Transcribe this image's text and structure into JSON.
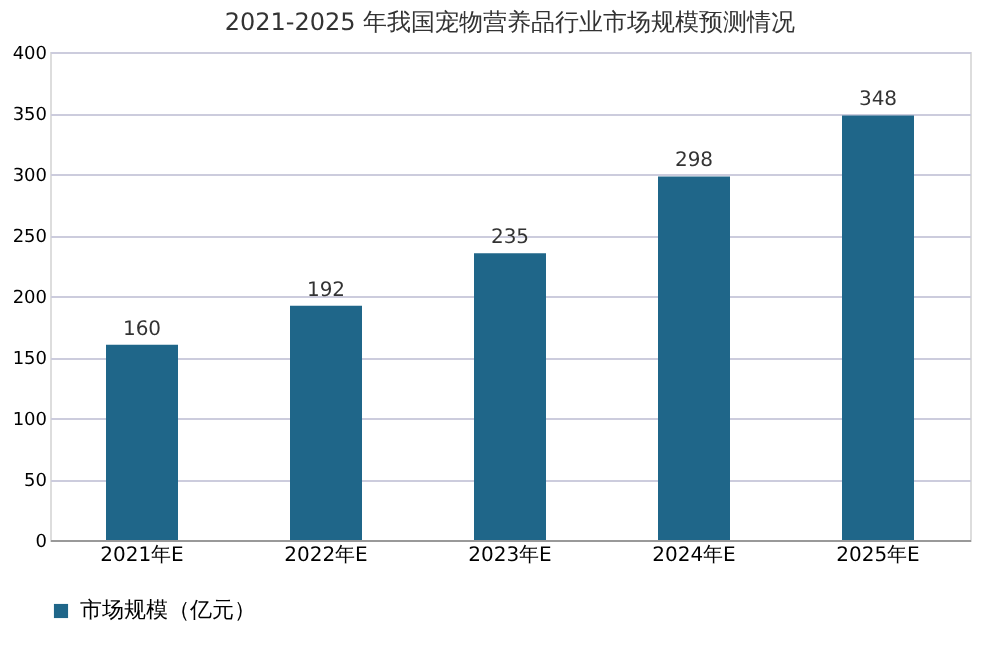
{
  "chart_data": {
    "type": "bar",
    "title": "2021-2025 年我国宠物营养品行业市场规模预测情况",
    "categories": [
      "2021年E",
      "2022年E",
      "2023年E",
      "2024年E",
      "2025年E"
    ],
    "series": [
      {
        "name": "市场规模（亿元）",
        "color": "#1f6689",
        "values": [
          160,
          192,
          235,
          298,
          348
        ]
      }
    ],
    "ylim": [
      0,
      400
    ],
    "yticks": [
      0,
      50,
      100,
      150,
      200,
      250,
      300,
      350,
      400
    ],
    "grid": "y",
    "legend": "bottom",
    "data_labels": true
  }
}
